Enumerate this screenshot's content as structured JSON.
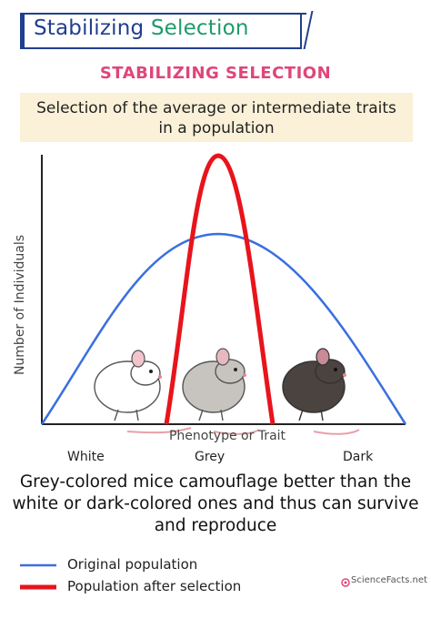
{
  "header": {
    "title_word1": "Stabilizing",
    "title_word2": "Selection",
    "subtitle": "STABILIZING SELECTION",
    "definition": "Selection of the average or intermediate traits in a population"
  },
  "chart": {
    "xlabel": "Phenotype or Trait",
    "ylabel": "Number of Individuals",
    "categories": [
      "White",
      "Grey",
      "Dark"
    ]
  },
  "caption": "Grey-colored mice camouflage better than the white or dark-colored ones and thus can survive and reproduce",
  "legend": [
    {
      "label": "Original population",
      "color": "#3a6fe0"
    },
    {
      "label": "Population after selection",
      "color": "#e8141c"
    }
  ],
  "logo": "ScienceFacts.net",
  "colors": {
    "original": "#3a6fe0",
    "selected": "#e8141c",
    "subtitle": "#e0457a",
    "title": "#1f3f8f",
    "box": "#fbf1d8"
  },
  "icons": [
    "white-mouse-icon",
    "grey-mouse-icon",
    "dark-mouse-icon",
    "sciencefacts-logo-icon"
  ]
}
